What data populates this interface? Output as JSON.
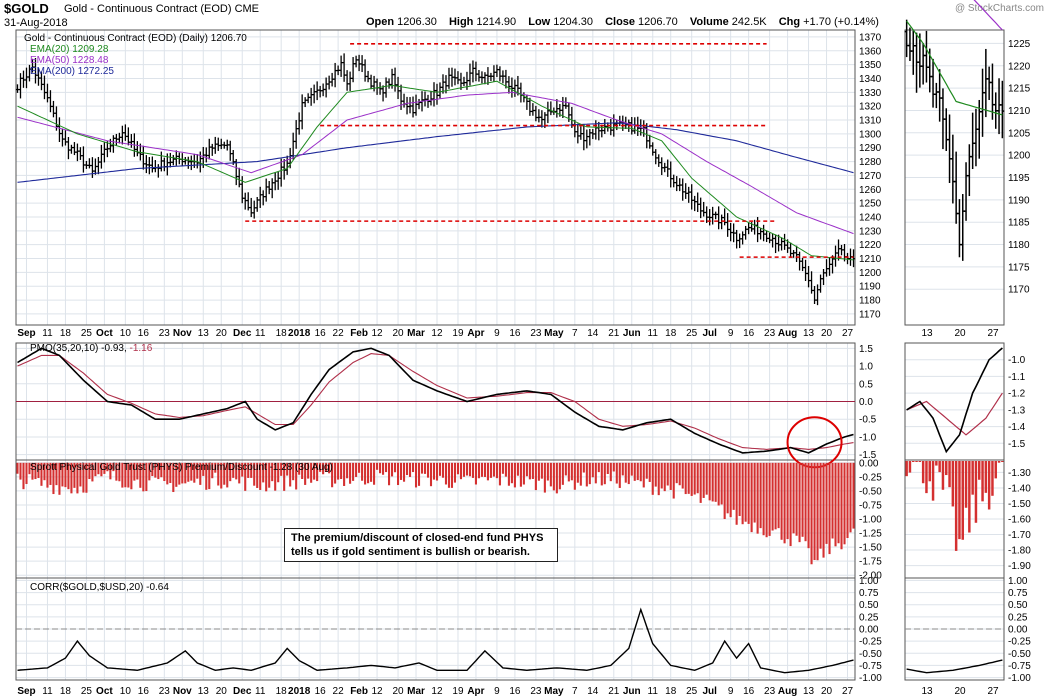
{
  "header": {
    "symbol": "$GOLD",
    "name": "Gold - Continuous Contract (EOD)",
    "exchange": "CME",
    "date": "31-Aug-2018",
    "watermark": "@ StockCharts.com",
    "open_label": "Open",
    "open": "1206.30",
    "high_label": "High",
    "high": "1214.90",
    "low_label": "Low",
    "low": "1204.30",
    "close_label": "Close",
    "close": "1206.70",
    "volume_label": "Volume",
    "volume": "242.5K",
    "chg_label": "Chg",
    "chg": "+1.70 (+0.14%)"
  },
  "panels": {
    "price": {
      "title": "Gold - Continuous Contract (EOD) (Daily) 1206.70",
      "legend": [
        {
          "label": "EMA(20) 1209.28",
          "color": "#1f8a1f"
        },
        {
          "label": "EMA(50) 1228.48",
          "color": "#9b30c8"
        },
        {
          "label": "EMA(200) 1272.25",
          "color": "#1f2a9a"
        }
      ]
    },
    "pmo": {
      "title": "PMO(35,20,10)",
      "value": "-0.93,",
      "signal": "-1.16"
    },
    "phys": {
      "title": "Sprott Physical Gold Trust (PHYS) Premium/Discount -1.28 (30 Aug)"
    },
    "corr": {
      "title": "CORR($GOLD,$USD,20) -0.64"
    }
  },
  "note": {
    "line1": "The premium/discount of closed-end fund PHYS",
    "line2": "tells us if gold sentiment is bullish or bearish."
  },
  "colors": {
    "candle": "#000000",
    "ema20": "#1f8a1f",
    "ema50": "#9b30c8",
    "ema200": "#1f2a9a",
    "support": "#dd0000",
    "pmo": "#000000",
    "pmo_signal": "#b0304a",
    "bars": "#d43030",
    "circle": "#dd0000"
  },
  "chart_data": [
    {
      "type": "line",
      "name": "price",
      "ylim": [
        1162,
        1375
      ],
      "y_ticks": [
        1170,
        1180,
        1190,
        1200,
        1210,
        1220,
        1230,
        1240,
        1250,
        1260,
        1270,
        1280,
        1290,
        1300,
        1310,
        1320,
        1330,
        1340,
        1350,
        1360,
        1370
      ],
      "x_labels": [
        "Sep",
        "11",
        "18",
        "25",
        "Oct",
        "10",
        "16",
        "23",
        "Nov",
        "13",
        "20",
        "Dec",
        "11",
        "18",
        "2018",
        "16",
        "22",
        "Feb",
        "12",
        "20",
        "Mar",
        "12",
        "19",
        "Apr",
        "9",
        "16",
        "23",
        "May",
        "7",
        "14",
        "21",
        "Jun",
        "11",
        "18",
        "25",
        "Jul",
        "9",
        "16",
        "23",
        "Aug",
        "13",
        "20",
        "27"
      ],
      "close_points": [
        [
          0,
          1335
        ],
        [
          5,
          1348
        ],
        [
          10,
          1325
        ],
        [
          15,
          1295
        ],
        [
          20,
          1285
        ],
        [
          25,
          1272
        ],
        [
          30,
          1290
        ],
        [
          35,
          1302
        ],
        [
          40,
          1285
        ],
        [
          45,
          1275
        ],
        [
          50,
          1280
        ],
        [
          55,
          1282
        ],
        [
          60,
          1280
        ],
        [
          65,
          1290
        ],
        [
          70,
          1292
        ],
        [
          75,
          1255
        ],
        [
          78,
          1244
        ],
        [
          82,
          1257
        ],
        [
          86,
          1268
        ],
        [
          90,
          1278
        ],
        [
          95,
          1320
        ],
        [
          100,
          1330
        ],
        [
          104,
          1340
        ],
        [
          108,
          1350
        ],
        [
          110,
          1335
        ],
        [
          113,
          1355
        ],
        [
          117,
          1340
        ],
        [
          121,
          1330
        ],
        [
          125,
          1340
        ],
        [
          128,
          1325
        ],
        [
          132,
          1318
        ],
        [
          136,
          1325
        ],
        [
          140,
          1330
        ],
        [
          144,
          1340
        ],
        [
          148,
          1335
        ],
        [
          152,
          1345
        ],
        [
          156,
          1340
        ],
        [
          160,
          1345
        ],
        [
          163,
          1338
        ],
        [
          167,
          1330
        ],
        [
          171,
          1318
        ],
        [
          175,
          1310
        ],
        [
          179,
          1318
        ],
        [
          183,
          1320
        ],
        [
          186,
          1300
        ],
        [
          189,
          1298
        ],
        [
          193,
          1303
        ],
        [
          197,
          1305
        ],
        [
          201,
          1306
        ],
        [
          205,
          1305
        ],
        [
          209,
          1302
        ],
        [
          213,
          1285
        ],
        [
          217,
          1272
        ],
        [
          221,
          1262
        ],
        [
          224,
          1255
        ],
        [
          228,
          1245
        ],
        [
          232,
          1240
        ],
        [
          236,
          1236
        ],
        [
          240,
          1225
        ],
        [
          244,
          1232
        ],
        [
          248,
          1230
        ],
        [
          252,
          1225
        ],
        [
          256,
          1218
        ],
        [
          260,
          1210
        ],
        [
          264,
          1195
        ],
        [
          266,
          1180
        ],
        [
          268,
          1195
        ],
        [
          271,
          1205
        ],
        [
          274,
          1215
        ],
        [
          277,
          1210
        ],
        [
          279,
          1207
        ]
      ],
      "ema20": [
        [
          0,
          1320
        ],
        [
          20,
          1300
        ],
        [
          40,
          1287
        ],
        [
          60,
          1280
        ],
        [
          76,
          1265
        ],
        [
          90,
          1275
        ],
        [
          100,
          1305
        ],
        [
          110,
          1330
        ],
        [
          125,
          1335
        ],
        [
          140,
          1330
        ],
        [
          160,
          1338
        ],
        [
          175,
          1320
        ],
        [
          190,
          1305
        ],
        [
          205,
          1304
        ],
        [
          215,
          1295
        ],
        [
          225,
          1268
        ],
        [
          240,
          1240
        ],
        [
          255,
          1225
        ],
        [
          265,
          1212
        ],
        [
          279,
          1209
        ]
      ],
      "ema50": [
        [
          0,
          1312
        ],
        [
          30,
          1295
        ],
        [
          60,
          1285
        ],
        [
          78,
          1272
        ],
        [
          95,
          1285
        ],
        [
          110,
          1310
        ],
        [
          130,
          1322
        ],
        [
          150,
          1328
        ],
        [
          165,
          1330
        ],
        [
          185,
          1322
        ],
        [
          200,
          1310
        ],
        [
          215,
          1300
        ],
        [
          230,
          1280
        ],
        [
          245,
          1262
        ],
        [
          260,
          1243
        ],
        [
          279,
          1228
        ]
      ],
      "ema200": [
        [
          0,
          1265
        ],
        [
          40,
          1275
        ],
        [
          80,
          1280
        ],
        [
          110,
          1290
        ],
        [
          140,
          1298
        ],
        [
          170,
          1305
        ],
        [
          200,
          1308
        ],
        [
          220,
          1303
        ],
        [
          240,
          1295
        ],
        [
          260,
          1283
        ],
        [
          279,
          1272
        ]
      ],
      "support_lines": [
        {
          "y": 1365,
          "x_start": 111,
          "x_end": 250
        },
        {
          "y": 1306,
          "x_start": 101,
          "x_end": 250
        },
        {
          "y": 1237,
          "x_start": 76,
          "x_end": 253
        },
        {
          "y": 1211,
          "x_start": 241,
          "x_end": 279
        }
      ]
    },
    {
      "type": "line",
      "name": "pmo",
      "ylim": [
        -1.65,
        1.65
      ],
      "y_ticks": [
        -1.5,
        -1.0,
        -0.5,
        0.0,
        0.5,
        1.0,
        1.5
      ],
      "series": [
        {
          "name": "PMO",
          "values": [
            [
              0,
              1.1
            ],
            [
              8,
              1.5
            ],
            [
              14,
              1.3
            ],
            [
              22,
              0.6
            ],
            [
              30,
              0.0
            ],
            [
              38,
              -0.1
            ],
            [
              46,
              -0.5
            ],
            [
              54,
              -0.5
            ],
            [
              62,
              -0.35
            ],
            [
              70,
              -0.2
            ],
            [
              76,
              0.0
            ],
            [
              80,
              -0.5
            ],
            [
              86,
              -0.8
            ],
            [
              92,
              -0.6
            ],
            [
              98,
              0.2
            ],
            [
              104,
              0.9
            ],
            [
              112,
              1.4
            ],
            [
              118,
              1.5
            ],
            [
              124,
              1.3
            ],
            [
              132,
              0.6
            ],
            [
              140,
              0.3
            ],
            [
              150,
              0.0
            ],
            [
              160,
              0.2
            ],
            [
              170,
              0.3
            ],
            [
              178,
              0.2
            ],
            [
              186,
              -0.3
            ],
            [
              194,
              -0.7
            ],
            [
              202,
              -0.8
            ],
            [
              210,
              -0.6
            ],
            [
              218,
              -0.5
            ],
            [
              226,
              -0.9
            ],
            [
              234,
              -1.2
            ],
            [
              242,
              -1.45
            ],
            [
              250,
              -1.4
            ],
            [
              258,
              -1.3
            ],
            [
              264,
              -1.45
            ],
            [
              270,
              -1.2
            ],
            [
              276,
              -1.0
            ],
            [
              279,
              -0.93
            ]
          ]
        },
        {
          "name": "Signal",
          "values": [
            [
              0,
              1.0
            ],
            [
              8,
              1.3
            ],
            [
              14,
              1.3
            ],
            [
              22,
              0.8
            ],
            [
              30,
              0.2
            ],
            [
              38,
              -0.05
            ],
            [
              46,
              -0.35
            ],
            [
              54,
              -0.45
            ],
            [
              62,
              -0.4
            ],
            [
              70,
              -0.25
            ],
            [
              76,
              -0.15
            ],
            [
              80,
              -0.35
            ],
            [
              86,
              -0.65
            ],
            [
              92,
              -0.65
            ],
            [
              98,
              -0.1
            ],
            [
              104,
              0.55
            ],
            [
              112,
              1.1
            ],
            [
              118,
              1.35
            ],
            [
              124,
              1.3
            ],
            [
              132,
              0.85
            ],
            [
              140,
              0.45
            ],
            [
              150,
              0.1
            ],
            [
              160,
              0.15
            ],
            [
              170,
              0.25
            ],
            [
              178,
              0.25
            ],
            [
              186,
              0.0
            ],
            [
              194,
              -0.5
            ],
            [
              202,
              -0.7
            ],
            [
              210,
              -0.65
            ],
            [
              218,
              -0.55
            ],
            [
              226,
              -0.75
            ],
            [
              234,
              -1.05
            ],
            [
              242,
              -1.3
            ],
            [
              250,
              -1.35
            ],
            [
              258,
              -1.3
            ],
            [
              264,
              -1.35
            ],
            [
              270,
              -1.3
            ],
            [
              276,
              -1.2
            ],
            [
              279,
              -1.16
            ]
          ]
        }
      ]
    },
    {
      "type": "bar",
      "name": "phys",
      "ylim": [
        -2.05,
        0.05
      ],
      "y_ticks": [
        0.0,
        -0.25,
        -0.5,
        -0.75,
        -1.0,
        -1.25,
        -1.5,
        -1.75,
        -2.0
      ],
      "profile": [
        [
          0,
          -0.3
        ],
        [
          10,
          -0.4
        ],
        [
          20,
          -0.45
        ],
        [
          30,
          -0.25
        ],
        [
          40,
          -0.35
        ],
        [
          50,
          -0.4
        ],
        [
          60,
          -0.35
        ],
        [
          70,
          -0.3
        ],
        [
          80,
          -0.4
        ],
        [
          90,
          -0.35
        ],
        [
          100,
          -0.3
        ],
        [
          110,
          -0.3
        ],
        [
          120,
          -0.25
        ],
        [
          130,
          -0.3
        ],
        [
          140,
          -0.3
        ],
        [
          150,
          -0.35
        ],
        [
          160,
          -0.3
        ],
        [
          170,
          -0.35
        ],
        [
          180,
          -0.4
        ],
        [
          190,
          -0.3
        ],
        [
          200,
          -0.3
        ],
        [
          210,
          -0.4
        ],
        [
          220,
          -0.5
        ],
        [
          230,
          -0.7
        ],
        [
          240,
          -1.0
        ],
        [
          248,
          -1.15
        ],
        [
          256,
          -1.3
        ],
        [
          262,
          -1.45
        ],
        [
          266,
          -1.8
        ],
        [
          270,
          -1.55
        ],
        [
          275,
          -1.4
        ],
        [
          279,
          -1.28
        ]
      ]
    },
    {
      "type": "line",
      "name": "corr",
      "ylim": [
        -1.05,
        1.05
      ],
      "y_ticks": [
        1.0,
        0.75,
        0.5,
        0.25,
        0.0,
        -0.25,
        -0.5,
        -0.75,
        -1.0
      ],
      "values": [
        [
          0,
          -0.85
        ],
        [
          10,
          -0.8
        ],
        [
          16,
          -0.6
        ],
        [
          20,
          -0.25
        ],
        [
          24,
          -0.55
        ],
        [
          30,
          -0.8
        ],
        [
          40,
          -0.85
        ],
        [
          50,
          -0.7
        ],
        [
          56,
          -0.45
        ],
        [
          60,
          -0.7
        ],
        [
          66,
          -0.85
        ],
        [
          72,
          -0.8
        ],
        [
          78,
          -0.85
        ],
        [
          86,
          -0.7
        ],
        [
          90,
          -0.4
        ],
        [
          94,
          -0.65
        ],
        [
          100,
          -0.85
        ],
        [
          110,
          -0.8
        ],
        [
          118,
          -0.75
        ],
        [
          126,
          -0.8
        ],
        [
          134,
          -0.7
        ],
        [
          140,
          -0.85
        ],
        [
          150,
          -0.85
        ],
        [
          156,
          -0.45
        ],
        [
          162,
          -0.8
        ],
        [
          170,
          -0.85
        ],
        [
          180,
          -0.8
        ],
        [
          190,
          -0.85
        ],
        [
          198,
          -0.75
        ],
        [
          204,
          -0.4
        ],
        [
          208,
          0.4
        ],
        [
          212,
          -0.3
        ],
        [
          218,
          -0.75
        ],
        [
          226,
          -0.85
        ],
        [
          232,
          -0.7
        ],
        [
          236,
          -0.25
        ],
        [
          240,
          -0.6
        ],
        [
          244,
          -0.3
        ],
        [
          248,
          -0.8
        ],
        [
          256,
          -0.9
        ],
        [
          264,
          -0.85
        ],
        [
          272,
          -0.75
        ],
        [
          279,
          -0.64
        ]
      ]
    }
  ]
}
